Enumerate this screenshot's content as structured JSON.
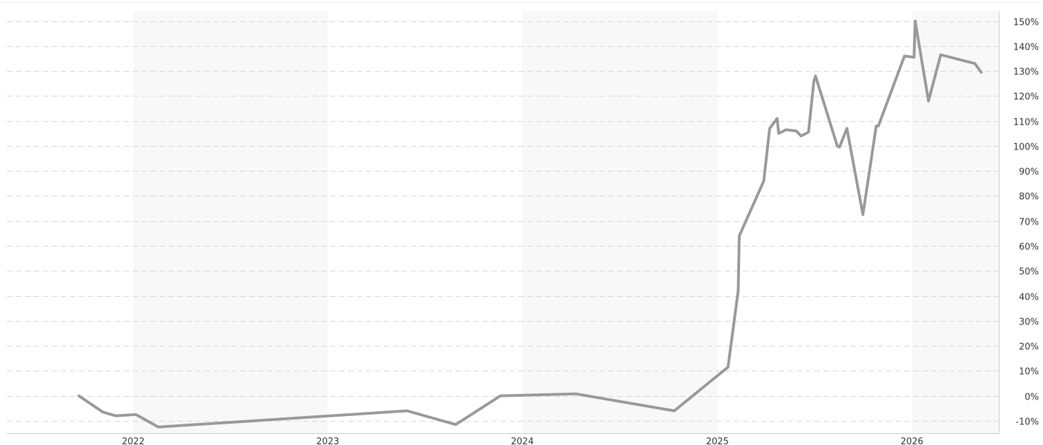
{
  "chart_data": {
    "type": "line",
    "title": "",
    "xlabel": "",
    "ylabel": "",
    "x_tick_labels": [
      "2022",
      "2023",
      "2024",
      "2025",
      "2026"
    ],
    "y_tick_labels": [
      "150%",
      "140%",
      "130%",
      "120%",
      "110%",
      "100%",
      "90%",
      "80%",
      "70%",
      "60%",
      "50%",
      "40%",
      "30%",
      "20%",
      "10%",
      "0%",
      "-10%"
    ],
    "x_range": [
      "2021-05-09",
      "2026-06-13"
    ],
    "ylim": [
      -15,
      154
    ],
    "grid": true,
    "alternating_year_bands": true,
    "y_axis_position": "right",
    "series": [
      {
        "color": "#999999",
        "points": [
          {
            "x": "2021-09-21",
            "y": 0
          },
          {
            "x": "2021-11-05",
            "y": -6.5
          },
          {
            "x": "2021-11-29",
            "y": -8
          },
          {
            "x": "2022-01-06",
            "y": -7.5
          },
          {
            "x": "2022-02-17",
            "y": -12.5
          },
          {
            "x": "2023-05-30",
            "y": -6
          },
          {
            "x": "2023-08-29",
            "y": -11.5
          },
          {
            "x": "2023-11-21",
            "y": 0
          },
          {
            "x": "2024-04-10",
            "y": 0.8
          },
          {
            "x": "2024-10-12",
            "y": -6
          },
          {
            "x": "2025-01-21",
            "y": 11.5
          },
          {
            "x": "2025-02-09",
            "y": 42
          },
          {
            "x": "2025-02-11",
            "y": 64
          },
          {
            "x": "2025-03-29",
            "y": 86
          },
          {
            "x": "2025-04-09",
            "y": 107
          },
          {
            "x": "2025-04-23",
            "y": 111
          },
          {
            "x": "2025-04-26",
            "y": 105
          },
          {
            "x": "2025-05-10",
            "y": 106.5
          },
          {
            "x": "2025-05-29",
            "y": 106
          },
          {
            "x": "2025-06-07",
            "y": 104
          },
          {
            "x": "2025-06-21",
            "y": 105.5
          },
          {
            "x": "2025-07-01",
            "y": 126
          },
          {
            "x": "2025-07-04",
            "y": 128
          },
          {
            "x": "2025-08-14",
            "y": 100
          },
          {
            "x": "2025-08-18",
            "y": 99.5
          },
          {
            "x": "2025-09-01",
            "y": 107
          },
          {
            "x": "2025-10-01",
            "y": 72.5
          },
          {
            "x": "2025-10-26",
            "y": 108
          },
          {
            "x": "2025-10-30",
            "y": 108
          },
          {
            "x": "2025-12-18",
            "y": 136
          },
          {
            "x": "2026-01-05",
            "y": 135.5
          },
          {
            "x": "2026-01-07",
            "y": 150
          },
          {
            "x": "2026-02-01",
            "y": 118
          },
          {
            "x": "2026-02-24",
            "y": 136.5
          },
          {
            "x": "2026-04-29",
            "y": 133
          },
          {
            "x": "2026-05-11",
            "y": 129.5
          }
        ]
      }
    ]
  }
}
